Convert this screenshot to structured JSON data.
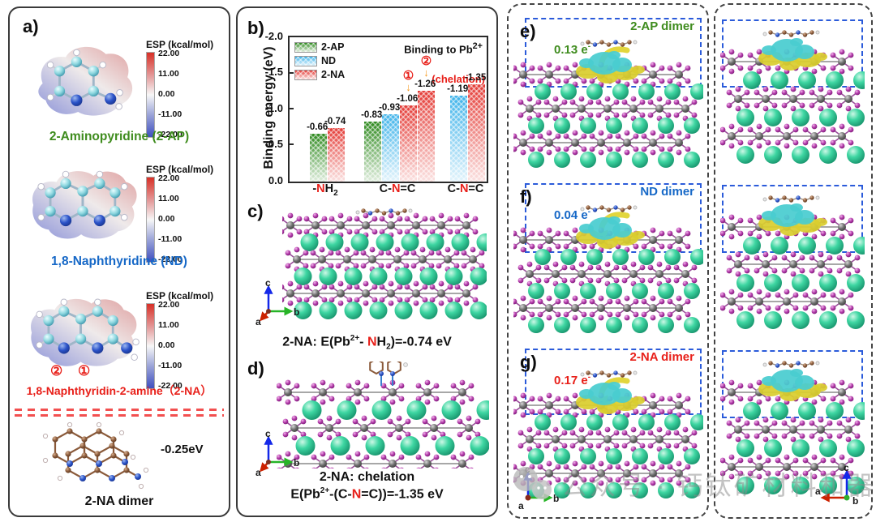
{
  "panel_labels": {
    "a": "a)",
    "b": "b)",
    "c": "c)",
    "d": "d)",
    "e": "e)",
    "f": "f)",
    "g": "g)"
  },
  "esp_scale": {
    "title": "ESP (kcal/mol)",
    "ticks": [
      "22.00",
      "11.00",
      "0.00",
      "-11.00",
      "-22.00"
    ]
  },
  "panel_a": {
    "mol_2ap": {
      "name": "2-Aminopyridine (2-AP)"
    },
    "mol_nd": {
      "name": "1,8-Naphthyridine (ND)"
    },
    "mol_2na": {
      "name": "1,8-Naphthyridin-2-amine（2-NA）",
      "site_2": "②",
      "site_1": "①"
    },
    "dimer": {
      "energy": "-0.25eV",
      "label": "2-NA dimer"
    }
  },
  "chart": {
    "ylabel": "Binding energy (eV)",
    "yticks": [
      "-2.0",
      "-1.5",
      "-1.0",
      "-0.5",
      "0.0"
    ],
    "annotation_text": "Binding to Pb",
    "annotation_sup": "2+",
    "chelation": "(chelation)",
    "xlabels": [
      {
        "p1": "-",
        "n": "N",
        "p2": "H",
        "sub": "2"
      },
      {
        "p1": "C-",
        "n": "N",
        "p2": "=C",
        "sub": ""
      },
      {
        "p1": "C-",
        "n": "N",
        "p2": "=C",
        "sub": ""
      }
    ]
  },
  "chart_data": {
    "type": "bar",
    "title": "Binding to Pb2+",
    "ylabel": "Binding energy (eV)",
    "ylim": [
      0,
      -2.0
    ],
    "yticks": [
      -2.0,
      -1.5,
      -1.0,
      -0.5,
      0.0
    ],
    "legend": [
      "2-AP",
      "ND",
      "2-NA"
    ],
    "legend_position": "top-left",
    "series_colors": {
      "2-AP": "#2f8a1f",
      "ND": "#3fb3ea",
      "2-NA": "#e43b36"
    },
    "categories": [
      "-NH2",
      "C-N=C",
      "C-N=C (chelation)"
    ],
    "groups": [
      {
        "category": "-NH2",
        "bars": [
          {
            "series": "2-AP",
            "value": -0.66,
            "label": "-0.66"
          },
          {
            "series": "2-NA",
            "value": -0.74,
            "label": "-0.74"
          }
        ]
      },
      {
        "category": "C-N=C",
        "bars": [
          {
            "series": "2-AP",
            "value": -0.83,
            "label": "-0.83"
          },
          {
            "series": "ND",
            "value": -0.93,
            "label": "-0.93"
          },
          {
            "series": "2-NA",
            "value": -1.06,
            "label": "-1.06",
            "marker": "①"
          },
          {
            "series": "2-NA",
            "value": -1.26,
            "label": "-1.26",
            "marker": "②"
          }
        ]
      },
      {
        "category": "C-N=C (chelation)",
        "note": "(chelation)",
        "bars": [
          {
            "series": "ND",
            "value": -1.19,
            "label": "-1.19"
          },
          {
            "series": "2-NA",
            "value": -1.35,
            "label": "-1.35"
          }
        ]
      }
    ]
  },
  "panel_c": {
    "caption": {
      "p1": "2-NA: E(Pb",
      "sup": "2+",
      "p2": "- ",
      "n": "N",
      "p3": "H",
      "sub": "2",
      "p4": ")=-0.74 eV"
    }
  },
  "panel_d": {
    "caption_line1": "2-NA: chelation",
    "caption_line2": {
      "p1": "E(Pb",
      "sup": "2+",
      "p2": "-(C-",
      "n": "N",
      "p3": "=C))=-1.35 eV",
      "sub": "",
      "p4": ""
    }
  },
  "panel_e": {
    "dimer_label": "2-AP dimer",
    "charge": "0.13 e",
    "charge_sup": "-"
  },
  "panel_f": {
    "dimer_label": "ND dimer",
    "charge": "0.04 e",
    "charge_sup": "-"
  },
  "panel_g": {
    "dimer_label": "2-NA dimer",
    "charge": "0.17 e",
    "charge_sup": "-"
  },
  "axes": {
    "a": "a",
    "b": "b",
    "c": "c"
  },
  "watermark": {
    "text": "公众号 · 钙钛矿材料和器件"
  },
  "colors": {
    "text_green": "#3f8c1e",
    "text_blue": "#1668c7",
    "text_red": "#e8201a",
    "bar_green": "#2f8a1f",
    "bar_blue": "#3fb3ea",
    "bar_red": "#e43b36",
    "dashed_blue": "#2b5bda",
    "arrow_yellow": "#e2d63e",
    "marker_arrow_orange": "#f59a23",
    "iso_cyan": "#49ccd0",
    "iso_yellow": "#d9ce2e",
    "atom_teal": "#34cf9a",
    "atom_gray": "#5a5a5a",
    "atom_purple": "#a02898"
  }
}
